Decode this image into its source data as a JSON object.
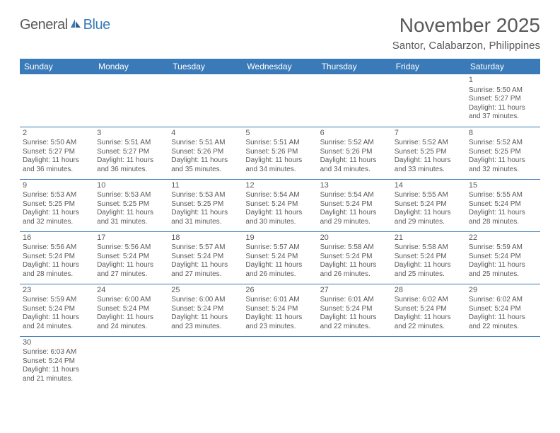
{
  "logo": {
    "text1": "General",
    "text2": "Blue"
  },
  "title": "November 2025",
  "location": "Santor, Calabarzon, Philippines",
  "colors": {
    "header_bg": "#3a7ab8",
    "header_text": "#ffffff",
    "body_text": "#595959",
    "divider": "#3a7ab8",
    "background": "#ffffff"
  },
  "day_headers": [
    "Sunday",
    "Monday",
    "Tuesday",
    "Wednesday",
    "Thursday",
    "Friday",
    "Saturday"
  ],
  "weeks": [
    [
      null,
      null,
      null,
      null,
      null,
      null,
      {
        "n": "1",
        "sunrise": "Sunrise: 5:50 AM",
        "sunset": "Sunset: 5:27 PM",
        "day1": "Daylight: 11 hours",
        "day2": "and 37 minutes."
      }
    ],
    [
      {
        "n": "2",
        "sunrise": "Sunrise: 5:50 AM",
        "sunset": "Sunset: 5:27 PM",
        "day1": "Daylight: 11 hours",
        "day2": "and 36 minutes."
      },
      {
        "n": "3",
        "sunrise": "Sunrise: 5:51 AM",
        "sunset": "Sunset: 5:27 PM",
        "day1": "Daylight: 11 hours",
        "day2": "and 36 minutes."
      },
      {
        "n": "4",
        "sunrise": "Sunrise: 5:51 AM",
        "sunset": "Sunset: 5:26 PM",
        "day1": "Daylight: 11 hours",
        "day2": "and 35 minutes."
      },
      {
        "n": "5",
        "sunrise": "Sunrise: 5:51 AM",
        "sunset": "Sunset: 5:26 PM",
        "day1": "Daylight: 11 hours",
        "day2": "and 34 minutes."
      },
      {
        "n": "6",
        "sunrise": "Sunrise: 5:52 AM",
        "sunset": "Sunset: 5:26 PM",
        "day1": "Daylight: 11 hours",
        "day2": "and 34 minutes."
      },
      {
        "n": "7",
        "sunrise": "Sunrise: 5:52 AM",
        "sunset": "Sunset: 5:25 PM",
        "day1": "Daylight: 11 hours",
        "day2": "and 33 minutes."
      },
      {
        "n": "8",
        "sunrise": "Sunrise: 5:52 AM",
        "sunset": "Sunset: 5:25 PM",
        "day1": "Daylight: 11 hours",
        "day2": "and 32 minutes."
      }
    ],
    [
      {
        "n": "9",
        "sunrise": "Sunrise: 5:53 AM",
        "sunset": "Sunset: 5:25 PM",
        "day1": "Daylight: 11 hours",
        "day2": "and 32 minutes."
      },
      {
        "n": "10",
        "sunrise": "Sunrise: 5:53 AM",
        "sunset": "Sunset: 5:25 PM",
        "day1": "Daylight: 11 hours",
        "day2": "and 31 minutes."
      },
      {
        "n": "11",
        "sunrise": "Sunrise: 5:53 AM",
        "sunset": "Sunset: 5:25 PM",
        "day1": "Daylight: 11 hours",
        "day2": "and 31 minutes."
      },
      {
        "n": "12",
        "sunrise": "Sunrise: 5:54 AM",
        "sunset": "Sunset: 5:24 PM",
        "day1": "Daylight: 11 hours",
        "day2": "and 30 minutes."
      },
      {
        "n": "13",
        "sunrise": "Sunrise: 5:54 AM",
        "sunset": "Sunset: 5:24 PM",
        "day1": "Daylight: 11 hours",
        "day2": "and 29 minutes."
      },
      {
        "n": "14",
        "sunrise": "Sunrise: 5:55 AM",
        "sunset": "Sunset: 5:24 PM",
        "day1": "Daylight: 11 hours",
        "day2": "and 29 minutes."
      },
      {
        "n": "15",
        "sunrise": "Sunrise: 5:55 AM",
        "sunset": "Sunset: 5:24 PM",
        "day1": "Daylight: 11 hours",
        "day2": "and 28 minutes."
      }
    ],
    [
      {
        "n": "16",
        "sunrise": "Sunrise: 5:56 AM",
        "sunset": "Sunset: 5:24 PM",
        "day1": "Daylight: 11 hours",
        "day2": "and 28 minutes."
      },
      {
        "n": "17",
        "sunrise": "Sunrise: 5:56 AM",
        "sunset": "Sunset: 5:24 PM",
        "day1": "Daylight: 11 hours",
        "day2": "and 27 minutes."
      },
      {
        "n": "18",
        "sunrise": "Sunrise: 5:57 AM",
        "sunset": "Sunset: 5:24 PM",
        "day1": "Daylight: 11 hours",
        "day2": "and 27 minutes."
      },
      {
        "n": "19",
        "sunrise": "Sunrise: 5:57 AM",
        "sunset": "Sunset: 5:24 PM",
        "day1": "Daylight: 11 hours",
        "day2": "and 26 minutes."
      },
      {
        "n": "20",
        "sunrise": "Sunrise: 5:58 AM",
        "sunset": "Sunset: 5:24 PM",
        "day1": "Daylight: 11 hours",
        "day2": "and 26 minutes."
      },
      {
        "n": "21",
        "sunrise": "Sunrise: 5:58 AM",
        "sunset": "Sunset: 5:24 PM",
        "day1": "Daylight: 11 hours",
        "day2": "and 25 minutes."
      },
      {
        "n": "22",
        "sunrise": "Sunrise: 5:59 AM",
        "sunset": "Sunset: 5:24 PM",
        "day1": "Daylight: 11 hours",
        "day2": "and 25 minutes."
      }
    ],
    [
      {
        "n": "23",
        "sunrise": "Sunrise: 5:59 AM",
        "sunset": "Sunset: 5:24 PM",
        "day1": "Daylight: 11 hours",
        "day2": "and 24 minutes."
      },
      {
        "n": "24",
        "sunrise": "Sunrise: 6:00 AM",
        "sunset": "Sunset: 5:24 PM",
        "day1": "Daylight: 11 hours",
        "day2": "and 24 minutes."
      },
      {
        "n": "25",
        "sunrise": "Sunrise: 6:00 AM",
        "sunset": "Sunset: 5:24 PM",
        "day1": "Daylight: 11 hours",
        "day2": "and 23 minutes."
      },
      {
        "n": "26",
        "sunrise": "Sunrise: 6:01 AM",
        "sunset": "Sunset: 5:24 PM",
        "day1": "Daylight: 11 hours",
        "day2": "and 23 minutes."
      },
      {
        "n": "27",
        "sunrise": "Sunrise: 6:01 AM",
        "sunset": "Sunset: 5:24 PM",
        "day1": "Daylight: 11 hours",
        "day2": "and 22 minutes."
      },
      {
        "n": "28",
        "sunrise": "Sunrise: 6:02 AM",
        "sunset": "Sunset: 5:24 PM",
        "day1": "Daylight: 11 hours",
        "day2": "and 22 minutes."
      },
      {
        "n": "29",
        "sunrise": "Sunrise: 6:02 AM",
        "sunset": "Sunset: 5:24 PM",
        "day1": "Daylight: 11 hours",
        "day2": "and 22 minutes."
      }
    ],
    [
      {
        "n": "30",
        "sunrise": "Sunrise: 6:03 AM",
        "sunset": "Sunset: 5:24 PM",
        "day1": "Daylight: 11 hours",
        "day2": "and 21 minutes."
      },
      null,
      null,
      null,
      null,
      null,
      null
    ]
  ]
}
